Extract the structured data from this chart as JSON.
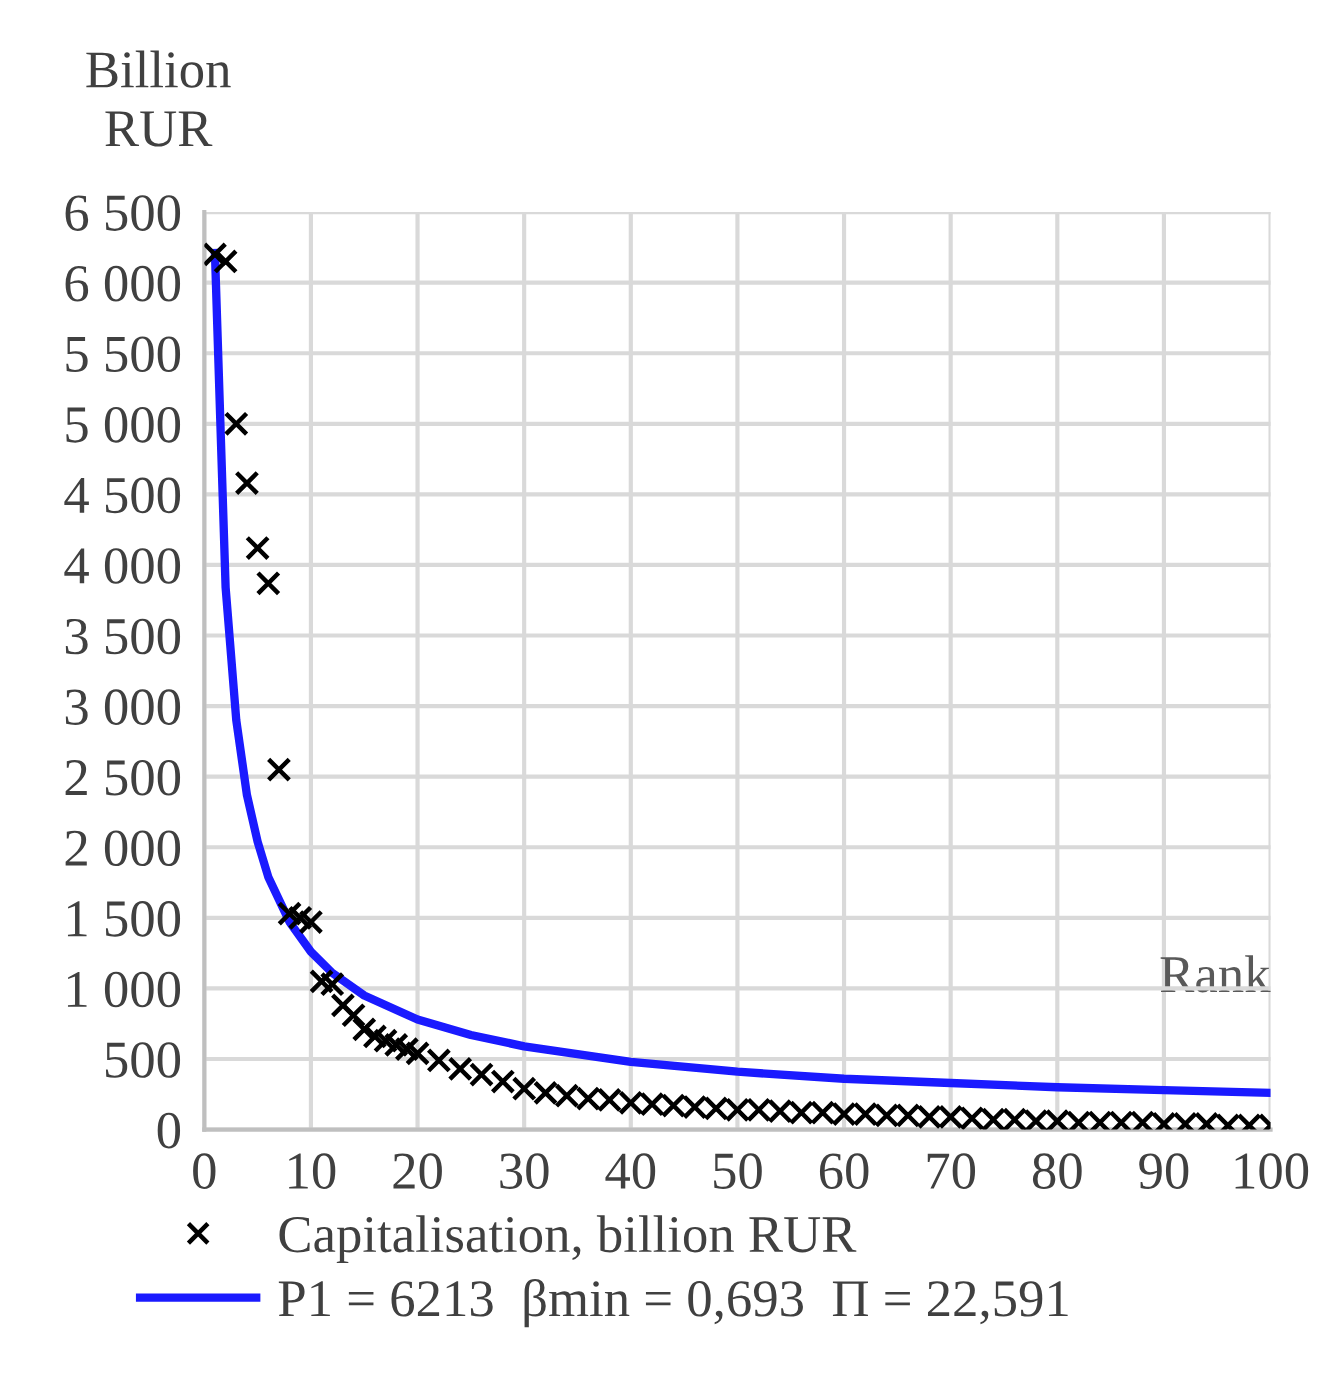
{
  "chart_data": {
    "type": "scatter",
    "ylabel": "Billion\nRUR",
    "xlabel": "Rank",
    "xlim": [
      0,
      100
    ],
    "xticks": [
      0,
      10,
      20,
      30,
      40,
      50,
      60,
      70,
      80,
      90,
      100
    ],
    "ylim": [
      0,
      6500
    ],
    "yticks": [
      0,
      500,
      {
        "value": 1000,
        "label": "1 000"
      },
      {
        "value": 1500,
        "label": "1 500"
      },
      {
        "value": 2000,
        "label": "2 000"
      },
      {
        "value": 2500,
        "label": "2 500"
      },
      {
        "value": 3000,
        "label": "3 000"
      },
      {
        "value": 3500,
        "label": "3 500"
      },
      {
        "value": 4000,
        "label": "4 000"
      },
      {
        "value": 4500,
        "label": "4 500"
      },
      {
        "value": 5000,
        "label": "5 000"
      },
      {
        "value": 5500,
        "label": "5 500"
      },
      {
        "value": 6000,
        "label": "6 000"
      },
      {
        "value": 6500,
        "label": "6 500"
      }
    ],
    "grid": true,
    "legend": "bottom",
    "series": [
      {
        "name": "Capitalisation, billion RUR",
        "marker": "cross",
        "color": "#000000",
        "x": [
          1,
          2,
          3,
          4,
          5,
          6,
          7,
          8,
          9,
          10,
          11,
          12,
          13,
          14,
          15,
          16,
          17,
          18,
          19,
          20,
          22,
          24,
          26,
          28,
          30,
          32,
          34,
          36,
          38,
          40,
          42,
          44,
          46,
          48,
          50,
          52,
          54,
          56,
          58,
          60,
          62,
          64,
          66,
          68,
          70,
          72,
          74,
          76,
          78,
          80,
          82,
          84,
          86,
          88,
          90,
          92,
          94,
          96,
          98,
          100
        ],
        "values": [
          6200,
          6150,
          5000,
          4580,
          4120,
          3870,
          2550,
          1530,
          1500,
          1470,
          1050,
          1030,
          880,
          810,
          710,
          660,
          630,
          600,
          570,
          540,
          490,
          430,
          390,
          340,
          290,
          260,
          240,
          220,
          210,
          190,
          180,
          170,
          160,
          150,
          140,
          140,
          130,
          120,
          120,
          110,
          110,
          100,
          100,
          90,
          90,
          80,
          70,
          70,
          60,
          60,
          50,
          50,
          50,
          50,
          40,
          40,
          40,
          30,
          30,
          30
        ]
      },
      {
        "name": "P1 = 6213  βmin = 0,693  Π = 22,591",
        "type": "line",
        "marker": "none",
        "line_style": "solid",
        "color": "#1a1aff",
        "x": [
          1,
          2,
          3,
          4,
          5,
          6,
          8,
          10,
          12,
          15,
          20,
          25,
          30,
          40,
          50,
          60,
          70,
          80,
          90,
          100
        ],
        "values": [
          6210,
          3840,
          2900,
          2370,
          2040,
          1790,
          1470,
          1260,
          1110,
          950,
          780,
          670,
          590,
          480,
          410,
          360,
          330,
          300,
          280,
          260
        ]
      }
    ]
  }
}
